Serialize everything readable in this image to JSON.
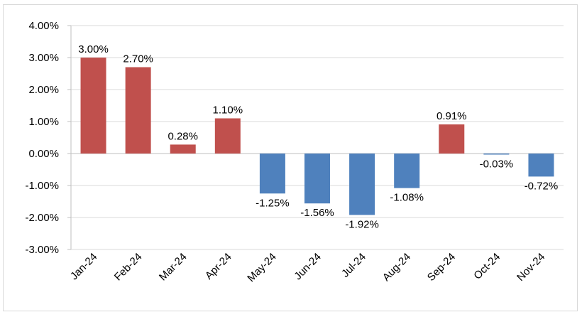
{
  "chart_data": {
    "type": "bar",
    "title": "",
    "xlabel": "",
    "ylabel": "",
    "categories": [
      "Jan-24",
      "Feb-24",
      "Mar-24",
      "Apr-24",
      "May-24",
      "Jun-24",
      "Jul-24",
      "Aug-24",
      "Sep-24",
      "Oct-24",
      "Nov-24"
    ],
    "values": [
      3.0,
      2.7,
      0.28,
      1.1,
      -1.25,
      -1.56,
      -1.92,
      -1.08,
      0.91,
      -0.03,
      -0.72
    ],
    "data_labels": [
      "3.00%",
      "2.70%",
      "0.28%",
      "1.10%",
      "-1.25%",
      "-1.56%",
      "-1.92%",
      "-1.08%",
      "0.91%",
      "-0.03%",
      "-0.72%"
    ],
    "ylim": [
      -3,
      4
    ],
    "y_ticks": [
      4,
      3,
      2,
      1,
      0,
      -1,
      -2,
      -3
    ],
    "y_tick_labels": [
      "4.00%",
      "3.00%",
      "2.00%",
      "1.00%",
      "0.00%",
      "-1.00%",
      "-2.00%",
      "-3.00%"
    ],
    "grid": true,
    "legend": "none",
    "colors": {
      "positive": "#c0504d",
      "negative": "#4f81bd",
      "grid": "#d9d9d9",
      "axis": "#bfbfbf"
    }
  }
}
